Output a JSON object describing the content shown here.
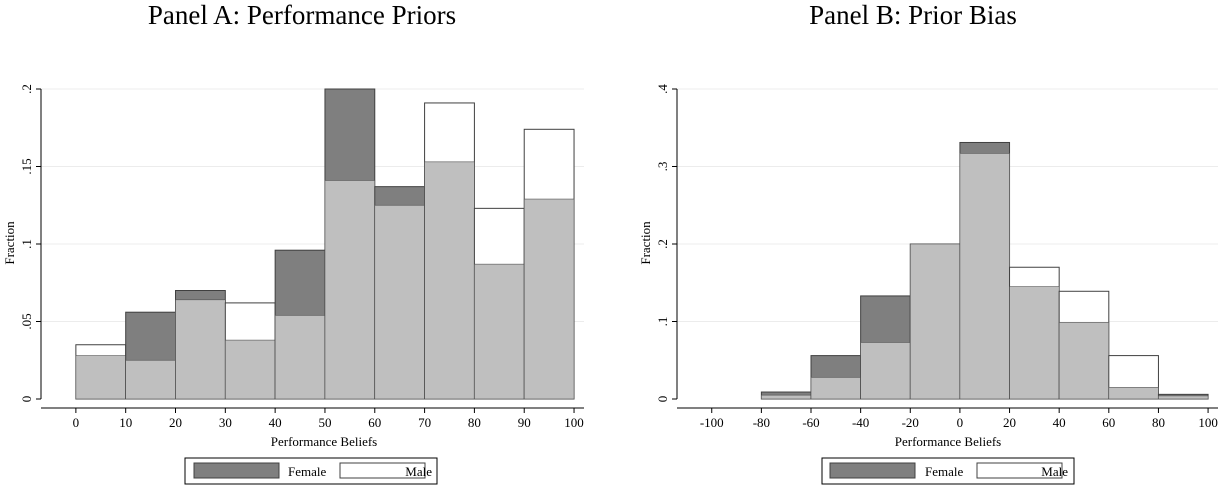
{
  "chart_data": [
    {
      "type": "bar",
      "title": "Panel A: Performance Priors",
      "xlabel": "Performance Beliefs",
      "ylabel": "Fraction",
      "bin_edges": [
        0,
        10,
        20,
        30,
        40,
        50,
        60,
        70,
        80,
        90,
        100
      ],
      "xticks": [
        "0",
        "10",
        "20",
        "30",
        "40",
        "50",
        "60",
        "70",
        "80",
        "90",
        "100"
      ],
      "yticks": [
        "0",
        ".05",
        ".1",
        ".15",
        ".2"
      ],
      "xlim": [
        -7,
        102
      ],
      "ylim": [
        0,
        0.2
      ],
      "grid": true,
      "legend_position": "bottom",
      "series": [
        {
          "name": "Female",
          "values": [
            0.028,
            0.056,
            0.07,
            0.038,
            0.096,
            0.2,
            0.137,
            0.153,
            0.087,
            0.129
          ],
          "color": "#7f7f7f"
        },
        {
          "name": "Male",
          "values": [
            0.035,
            0.025,
            0.064,
            0.062,
            0.054,
            0.141,
            0.125,
            0.191,
            0.123,
            0.174
          ],
          "color": "#ffffff"
        }
      ],
      "overlap_color": "#bfbfbf"
    },
    {
      "type": "bar",
      "title": "Panel B: Prior Bias",
      "xlabel": "Performance Beliefs",
      "ylabel": "Fraction",
      "bin_edges": [
        -80,
        -60,
        -40,
        -20,
        0,
        20,
        40,
        60,
        80,
        100
      ],
      "xticks": [
        "-100",
        "-80",
        "-60",
        "-40",
        "-20",
        "0",
        "20",
        "40",
        "60",
        "80",
        "100"
      ],
      "yticks": [
        "0",
        ".1",
        ".2",
        ".3",
        ".4"
      ],
      "xlim": [
        -114,
        104
      ],
      "ylim": [
        0,
        0.4
      ],
      "grid": true,
      "legend_position": "bottom",
      "series": [
        {
          "name": "Female",
          "values": [
            0.009,
            0.056,
            0.133,
            0.2,
            0.331,
            0.145,
            0.099,
            0.015,
            0.006
          ],
          "color": "#7f7f7f"
        },
        {
          "name": "Male",
          "values": [
            0.005,
            0.028,
            0.073,
            0.2,
            0.317,
            0.17,
            0.139,
            0.056,
            0.004
          ],
          "color": "#ffffff"
        }
      ],
      "overlap_color": "#bfbfbf"
    }
  ]
}
